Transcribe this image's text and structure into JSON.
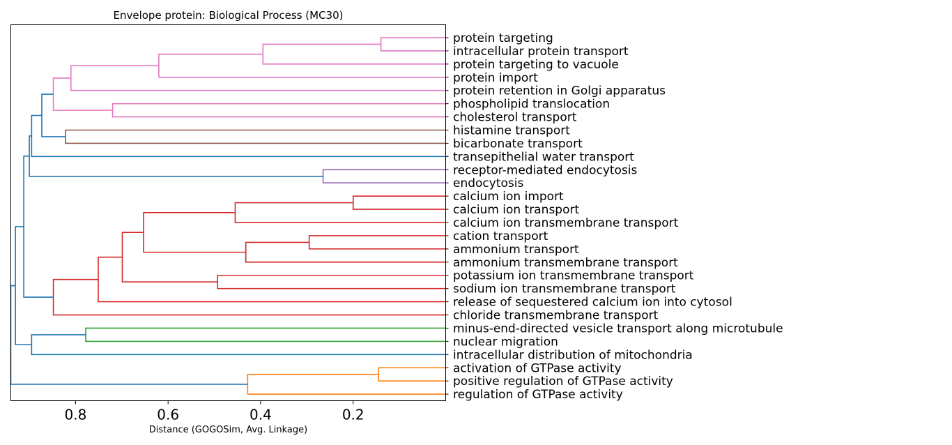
{
  "chart_data": {
    "type": "dendrogram",
    "title": "Envelope protein: Biological Process (MC30)",
    "xlabel": "Distance (GOGOSim, Avg. Linkage)",
    "xlim": [
      0.94,
      0.0
    ],
    "x_ticks": [
      0.8,
      0.6,
      0.4,
      0.2
    ],
    "x_tick_labels": [
      "0.8",
      "0.6",
      "0.4",
      "0.2"
    ],
    "grid": false,
    "leaves": [
      "protein targeting",
      "intracellular protein transport",
      "protein targeting to vacuole",
      "protein import",
      "protein retention in Golgi apparatus",
      "phospholipid translocation",
      "cholesterol transport",
      "histamine transport",
      "bicarbonate transport",
      "transepithelial water transport",
      "receptor-mediated endocytosis",
      "endocytosis",
      "calcium ion import",
      "calcium ion transport",
      "calcium ion transmembrane transport",
      "cation transport",
      "ammonium transport",
      "ammonium transmembrane transport",
      "potassium ion transmembrane transport",
      "sodium ion transmembrane transport",
      "release of sequestered calcium ion into cytosol",
      "chloride transmembrane transport",
      "minus-end-directed vesicle transport along microtubule",
      "nuclear migration",
      "intracellular distribution of mitochondria",
      "activation of GTPase activity",
      "positive regulation of GTPase activity",
      "regulation of GTPase activity"
    ],
    "merges": [
      {
        "a": "L0",
        "b": "L1",
        "height": 0.14,
        "color": "#e377c2"
      },
      {
        "a": "L2",
        "b": "M0",
        "height": 0.395,
        "color": "#e377c2"
      },
      {
        "a": "L3",
        "b": "M1",
        "height": 0.62,
        "color": "#e377c2"
      },
      {
        "a": "L4",
        "b": "M2",
        "height": 0.81,
        "color": "#e377c2"
      },
      {
        "a": "L5",
        "b": "L6",
        "height": 0.72,
        "color": "#e377c2"
      },
      {
        "a": "M3",
        "b": "M4",
        "height": 0.848,
        "color": "#e377c2"
      },
      {
        "a": "L7",
        "b": "L8",
        "height": 0.822,
        "color": "#8c564b"
      },
      {
        "a": "M5",
        "b": "M6",
        "height": 0.873,
        "color": "#1f77b4"
      },
      {
        "a": "M7",
        "b": "L9",
        "height": 0.895,
        "color": "#1f77b4"
      },
      {
        "a": "L10",
        "b": "L11",
        "height": 0.265,
        "color": "#9467bd"
      },
      {
        "a": "M8",
        "b": "M9",
        "height": 0.9,
        "color": "#1f77b4"
      },
      {
        "a": "L12",
        "b": "L13",
        "height": 0.2,
        "color": "#d62728"
      },
      {
        "a": "M11",
        "b": "L14",
        "height": 0.455,
        "color": "#d62728"
      },
      {
        "a": "L15",
        "b": "L16",
        "height": 0.295,
        "color": "#d62728"
      },
      {
        "a": "M13",
        "b": "L17",
        "height": 0.432,
        "color": "#d62728"
      },
      {
        "a": "M12",
        "b": "M14",
        "height": 0.653,
        "color": "#d62728"
      },
      {
        "a": "L18",
        "b": "L19",
        "height": 0.493,
        "color": "#d62728"
      },
      {
        "a": "M15",
        "b": "M16",
        "height": 0.699,
        "color": "#d62728"
      },
      {
        "a": "M17",
        "b": "L20",
        "height": 0.751,
        "color": "#d62728"
      },
      {
        "a": "M18",
        "b": "L21",
        "height": 0.848,
        "color": "#d62728"
      },
      {
        "a": "M10",
        "b": "M19",
        "height": 0.912,
        "color": "#1f77b4"
      },
      {
        "a": "L22",
        "b": "L23",
        "height": 0.778,
        "color": "#2ca02c"
      },
      {
        "a": "M21",
        "b": "L24",
        "height": 0.895,
        "color": "#1f77b4"
      },
      {
        "a": "M20",
        "b": "M22",
        "height": 0.93,
        "color": "#1f77b4"
      },
      {
        "a": "L25",
        "b": "L26",
        "height": 0.145,
        "color": "#ff7f0e"
      },
      {
        "a": "M24",
        "b": "L27",
        "height": 0.428,
        "color": "#ff7f0e"
      },
      {
        "a": "M23",
        "b": "M25",
        "height": 0.94,
        "color": "#1f77b4"
      }
    ]
  }
}
